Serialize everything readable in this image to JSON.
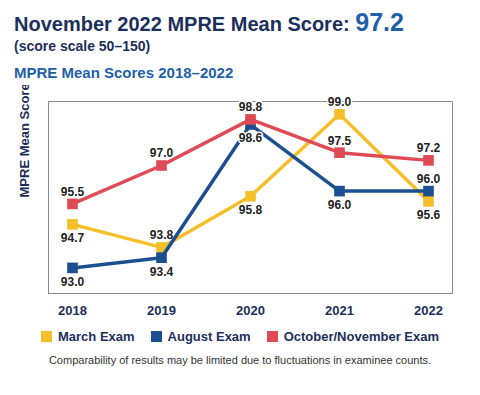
{
  "chart_data": {
    "type": "line",
    "title": "November 2022 MPRE Mean Score: 97.2",
    "subtitle": "(score scale 50–150)",
    "plot_title": "MPRE Mean Scores 2018–2022",
    "y_label": "MPRE Mean Score",
    "caption": "Comparability of results may be limited due to fluctuations in examinee counts.",
    "categories": [
      "2018",
      "2019",
      "2020",
      "2021",
      "2022"
    ],
    "series": [
      {
        "name": "March Exam",
        "color": "#f5bf2a",
        "values": [
          94.7,
          93.8,
          95.8,
          99.0,
          95.6
        ],
        "value_labels": [
          "94.7",
          "93.8",
          "95.8",
          "99.0",
          "95.6"
        ]
      },
      {
        "name": "August Exam",
        "color": "#1c4f8f",
        "values": [
          93.0,
          93.4,
          98.6,
          96.0,
          96.0
        ],
        "value_labels": [
          "93.0",
          "93.4",
          "98.6",
          "96.0",
          "96.0"
        ]
      },
      {
        "name": "October/November Exam",
        "color": "#e04a55",
        "values": [
          95.5,
          97.0,
          98.8,
          97.5,
          97.2
        ],
        "value_labels": [
          "95.5",
          "97.0",
          "98.8",
          "97.5",
          "97.2"
        ]
      }
    ],
    "ylim": [
      92,
      99.5
    ],
    "tick_labels": "x",
    "data_labels": true,
    "marker": "square",
    "legend": "bottom"
  }
}
